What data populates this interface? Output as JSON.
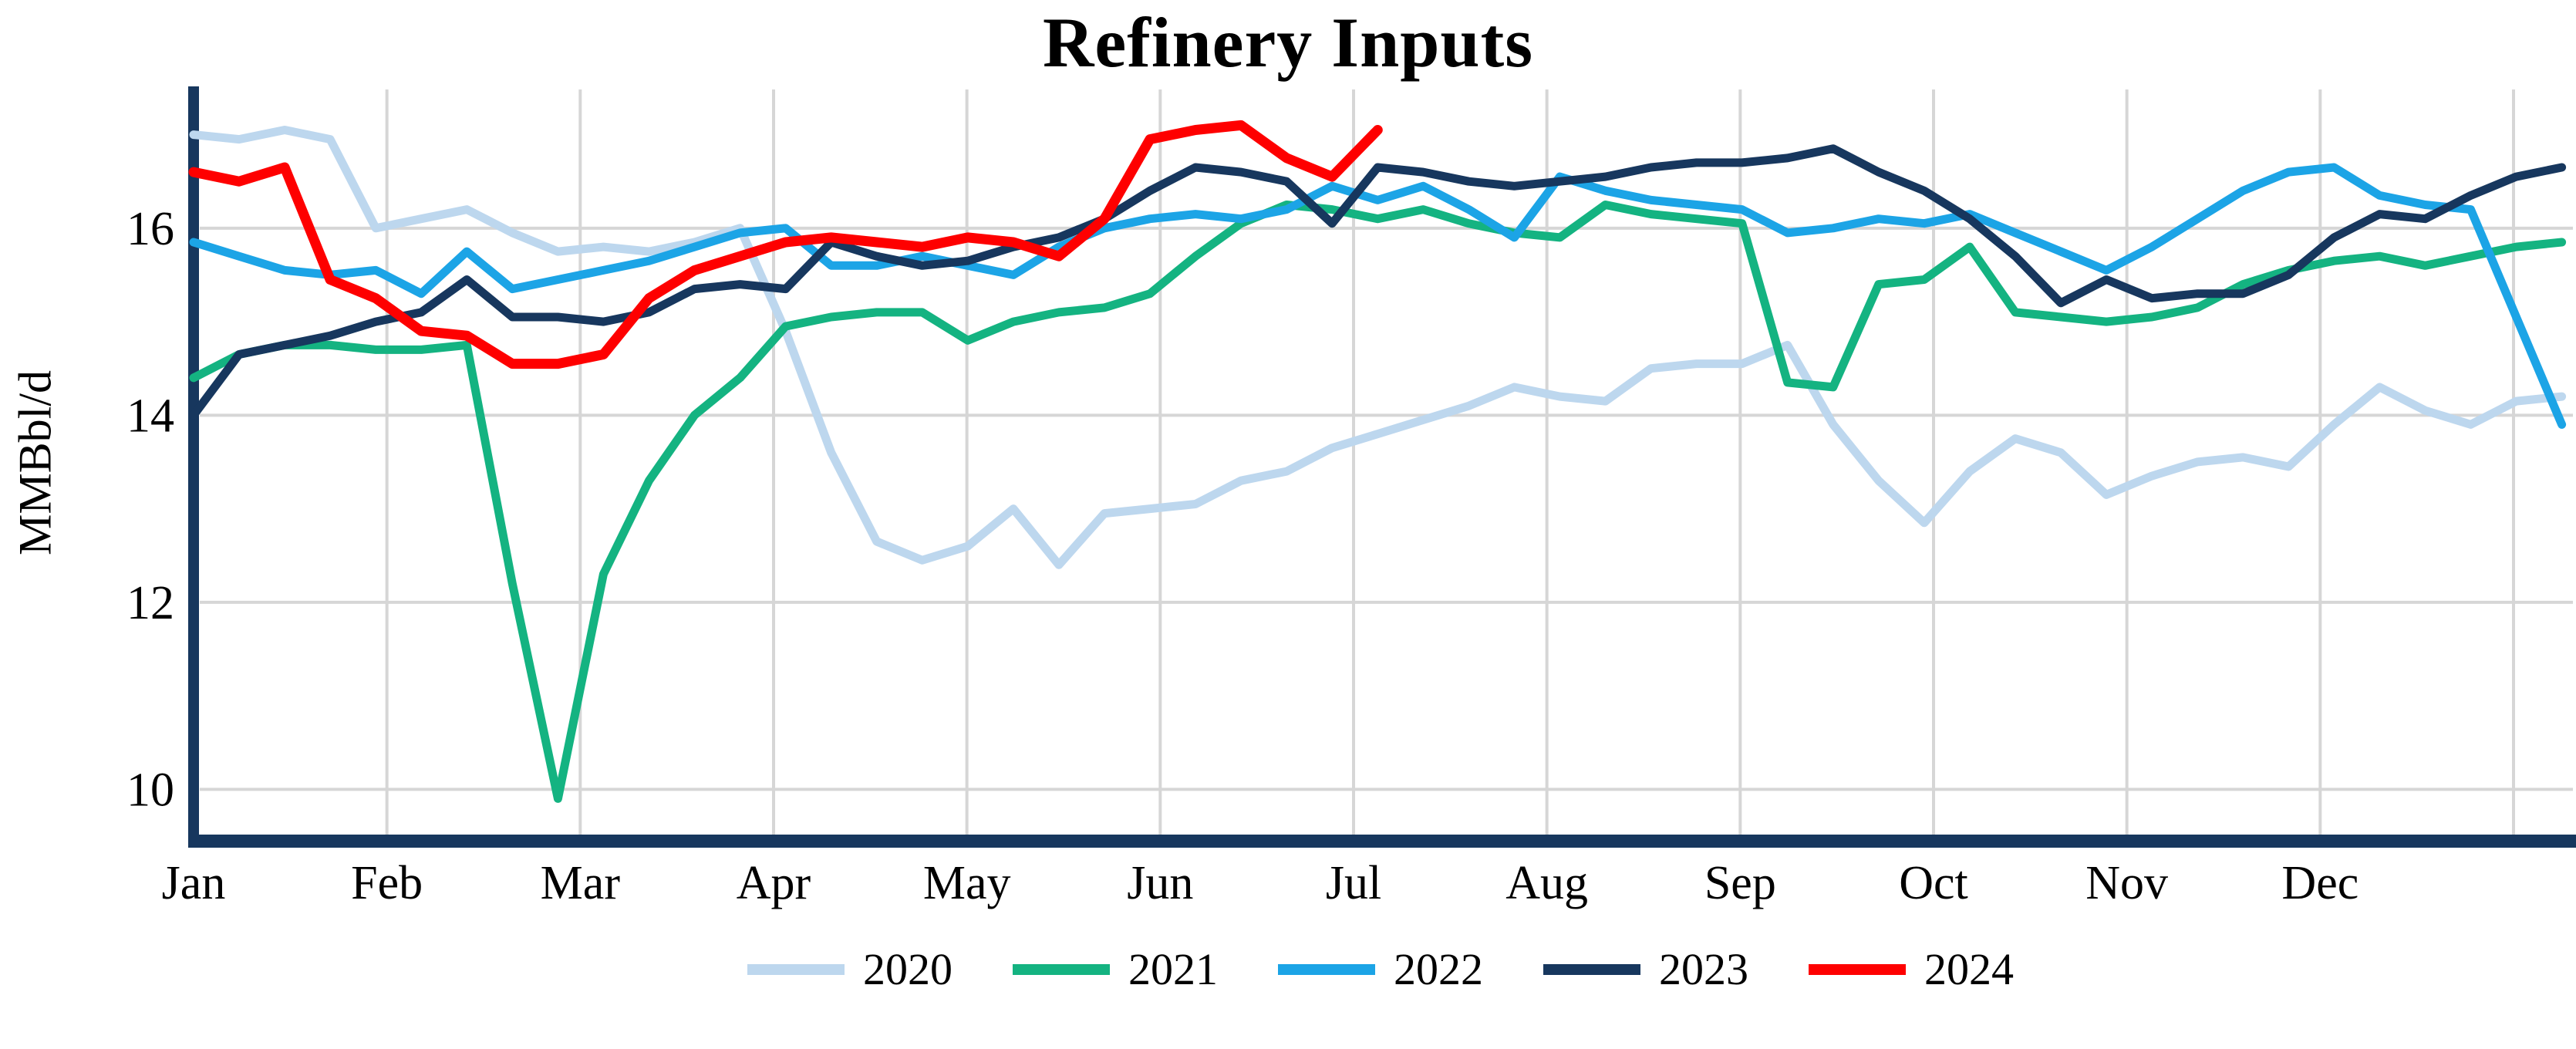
{
  "chart_data": {
    "type": "line",
    "title": "Refinery Inputs",
    "ylabel": "MMBbl/d",
    "xlabel": "",
    "x_tick_labels": [
      "Jan",
      "Feb",
      "Mar",
      "Apr",
      "May",
      "Jun",
      "Jul",
      "Aug",
      "Sep",
      "Oct",
      "Nov",
      "Dec"
    ],
    "y_ticks": [
      10,
      12,
      14,
      16
    ],
    "ylim": [
      9.45,
      17.45
    ],
    "x_unit": "weekly observations, Jan through Dec",
    "grid": true,
    "grid_color": "#d6d6d6",
    "axis_color": "#17375e",
    "text_color": "#000000",
    "legend_position": "bottom",
    "series": [
      {
        "name": "2020",
        "color": "#bdd7ee",
        "stroke_width": 11,
        "span_weeks": 52,
        "values": [
          17.0,
          16.95,
          17.05,
          16.95,
          16.0,
          16.1,
          16.2,
          15.95,
          15.75,
          15.8,
          15.75,
          15.85,
          16.0,
          14.9,
          13.6,
          12.65,
          12.45,
          12.6,
          13.0,
          12.4,
          12.95,
          13.0,
          13.05,
          13.3,
          13.4,
          13.65,
          13.8,
          13.95,
          14.1,
          14.3,
          14.2,
          14.15,
          14.5,
          14.55,
          14.55,
          14.75,
          13.9,
          13.3,
          12.85,
          13.4,
          13.75,
          13.6,
          13.15,
          13.35,
          13.5,
          13.55,
          13.45,
          13.9,
          14.3,
          14.05,
          13.9,
          14.15,
          14.2
        ]
      },
      {
        "name": "2021",
        "color": "#14b381",
        "stroke_width": 11,
        "span_weeks": 52,
        "values": [
          14.4,
          14.65,
          14.75,
          14.75,
          14.7,
          14.7,
          14.75,
          12.2,
          9.9,
          12.3,
          13.3,
          14.0,
          14.4,
          14.95,
          15.05,
          15.1,
          15.1,
          14.8,
          15.0,
          15.1,
          15.15,
          15.3,
          15.7,
          16.05,
          16.25,
          16.2,
          16.1,
          16.2,
          16.05,
          15.95,
          15.9,
          16.25,
          16.15,
          16.1,
          16.05,
          14.35,
          14.3,
          15.4,
          15.45,
          15.8,
          15.1,
          15.05,
          15.0,
          15.05,
          15.15,
          15.4,
          15.55,
          15.65,
          15.7,
          15.6,
          15.7,
          15.8,
          15.85
        ]
      },
      {
        "name": "2022",
        "color": "#1ca4e6",
        "stroke_width": 11,
        "span_weeks": 52,
        "values": [
          15.85,
          15.7,
          15.55,
          15.5,
          15.55,
          15.3,
          15.75,
          15.35,
          15.45,
          15.55,
          15.65,
          15.8,
          15.95,
          16.0,
          15.6,
          15.6,
          15.7,
          15.6,
          15.5,
          15.8,
          16.0,
          16.1,
          16.15,
          16.1,
          16.2,
          16.45,
          16.3,
          16.45,
          16.2,
          15.9,
          16.55,
          16.4,
          16.3,
          16.25,
          16.2,
          15.95,
          16.0,
          16.1,
          16.05,
          16.15,
          15.95,
          15.75,
          15.55,
          15.8,
          16.1,
          16.4,
          16.6,
          16.65,
          16.35,
          16.25,
          16.2,
          15.05,
          13.9
        ]
      },
      {
        "name": "2023",
        "color": "#17375e",
        "stroke_width": 11,
        "span_weeks": 52,
        "values": [
          14.0,
          14.65,
          14.75,
          14.85,
          15.0,
          15.1,
          15.45,
          15.05,
          15.05,
          15.0,
          15.1,
          15.35,
          15.4,
          15.35,
          15.85,
          15.7,
          15.6,
          15.65,
          15.8,
          15.9,
          16.1,
          16.4,
          16.65,
          16.6,
          16.5,
          16.05,
          16.65,
          16.6,
          16.5,
          16.45,
          16.5,
          16.55,
          16.65,
          16.7,
          16.7,
          16.75,
          16.85,
          16.6,
          16.4,
          16.1,
          15.7,
          15.2,
          15.45,
          15.25,
          15.3,
          15.3,
          15.5,
          15.9,
          16.15,
          16.1,
          16.35,
          16.55,
          16.65
        ]
      },
      {
        "name": "2024",
        "color": "#fe0000",
        "stroke_width": 13,
        "span_weeks": 26,
        "values": [
          16.6,
          16.5,
          16.65,
          15.45,
          15.25,
          14.9,
          14.85,
          14.55,
          14.55,
          14.65,
          15.25,
          15.55,
          15.7,
          15.85,
          15.9,
          15.85,
          15.8,
          15.9,
          15.85,
          15.7,
          16.1,
          16.95,
          17.05,
          17.1,
          16.75,
          16.55,
          17.05
        ]
      }
    ]
  }
}
